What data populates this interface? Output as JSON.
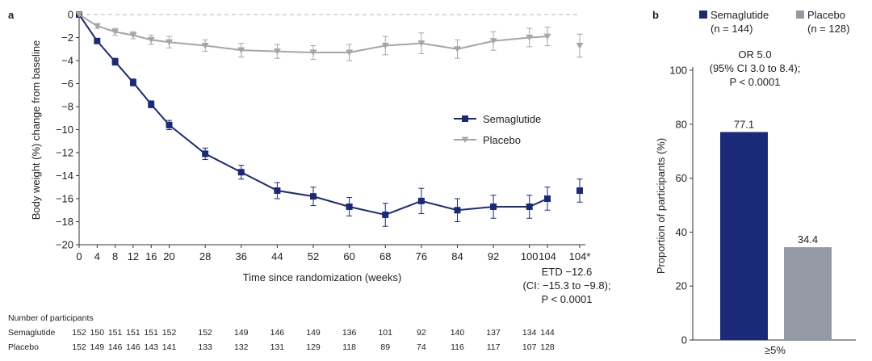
{
  "chart_data": [
    {
      "panel": "a",
      "type": "line",
      "xlabel": "Time since randomization (weeks)",
      "ylabel": "Body weight (%) change from baseline",
      "ylim": [
        -20,
        0
      ],
      "yticks": [
        "0",
        "−2",
        "−4",
        "−6",
        "−8",
        "−10",
        "−12",
        "−14",
        "−16",
        "−18",
        "−20"
      ],
      "x": [
        0,
        4,
        8,
        12,
        16,
        20,
        28,
        36,
        44,
        52,
        60,
        68,
        76,
        84,
        92,
        100,
        104
      ],
      "xtick_labels": [
        "0",
        "4",
        "8",
        "12",
        "16",
        "20",
        "28",
        "36",
        "44",
        "52",
        "60",
        "68",
        "76",
        "84",
        "92",
        "100",
        "104",
        "104*"
      ],
      "series": [
        {
          "name": "Semaglutide",
          "color": "#1b2a78",
          "marker": "square",
          "values": [
            0,
            -2.3,
            -4.1,
            -5.9,
            -7.8,
            -9.6,
            -12.1,
            -13.7,
            -15.3,
            -15.8,
            -16.7,
            -17.4,
            -16.2,
            -17.0,
            -16.7,
            -16.7,
            -16.0
          ],
          "error": [
            0,
            0.2,
            0.3,
            0.3,
            0.3,
            0.4,
            0.5,
            0.6,
            0.7,
            0.8,
            0.8,
            1.0,
            1.1,
            1.0,
            1.0,
            1.0,
            1.0
          ],
          "extra": {
            "label": "104*",
            "value": -15.3,
            "error": 1.0
          }
        },
        {
          "name": "Placebo",
          "color": "#a8a6a2",
          "marker": "triangle-down",
          "values": [
            0,
            -1.0,
            -1.5,
            -1.8,
            -2.2,
            -2.4,
            -2.7,
            -3.1,
            -3.2,
            -3.3,
            -3.3,
            -2.7,
            -2.5,
            -3.0,
            -2.3,
            -2.0,
            -1.9
          ],
          "error": [
            0,
            0.2,
            0.3,
            0.3,
            0.4,
            0.5,
            0.5,
            0.6,
            0.6,
            0.6,
            0.7,
            0.8,
            0.9,
            0.8,
            0.8,
            0.8,
            0.8
          ],
          "extra": {
            "label": "104*",
            "value": -2.7,
            "error": 1.0
          }
        }
      ],
      "legend": [
        "Semaglutide",
        "Placebo"
      ],
      "annotation": [
        "ETD −12.6",
        "(CI: −15.3 to −9.8);",
        "P < 0.0001"
      ],
      "participants": {
        "header": "Number of participants",
        "rows": [
          {
            "label": "Semaglutide",
            "counts": [
              "152",
              "150",
              "151",
              "151",
              "151",
              "152",
              "152",
              "149",
              "146",
              "149",
              "136",
              "101",
              "92",
              "140",
              "137",
              "134",
              "144"
            ]
          },
          {
            "label": "Placebo",
            "counts": [
              "152",
              "149",
              "146",
              "146",
              "143",
              "141",
              "133",
              "132",
              "131",
              "129",
              "118",
              "89",
              "74",
              "116",
              "117",
              "107",
              "128"
            ]
          }
        ]
      }
    },
    {
      "panel": "b",
      "type": "bar",
      "categories": [
        "≥5%"
      ],
      "series": [
        {
          "name": "Semaglutide",
          "n_label": "(n = 144)",
          "values": [
            77.1
          ],
          "color": "#1b2a78"
        },
        {
          "name": "Placebo",
          "n_label": "(n = 128)",
          "values": [
            34.4
          ],
          "color": "#939aa6"
        }
      ],
      "ylabel": "Proportion of participants (%)",
      "ylim": [
        0,
        100
      ],
      "yticks": [
        "0",
        "20",
        "40",
        "60",
        "80",
        "100"
      ],
      "annotation": [
        "OR 5.0",
        "(95% CI 3.0 to 8.4);",
        "P < 0.0001"
      ]
    }
  ]
}
